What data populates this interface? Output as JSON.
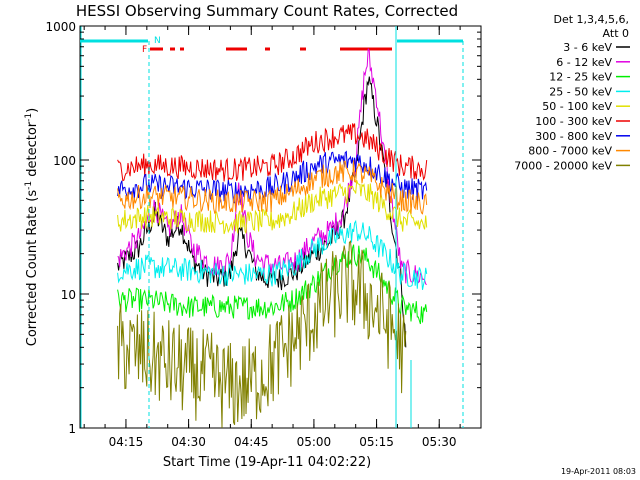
{
  "colors": {
    "s3_6": "#000000",
    "s6_12": "#e000e0",
    "s12_25": "#00ee00",
    "s25_50": "#00eeee",
    "s50_100": "#e0e000",
    "s100_300": "#ee0000",
    "s300_800": "#0000ee",
    "s800_7000": "#ff8800",
    "s7000_20000": "#808000",
    "att": "#00e0e0",
    "flags": "#ee0000"
  },
  "chart_data": {
    "type": "line",
    "title": "HESSI Observing Summary Count Rates, Corrected",
    "xlabel": "Start Time (19-Apr-11 04:02:22)",
    "ylabel": "Corrected Count Rate (s",
    "ylabel_sup": "-1",
    "ylabel_mid": " detector",
    "ylabel_sup2": "-1",
    "ylabel_end": ")",
    "yscale": "log",
    "ylim": [
      1,
      1000
    ],
    "xlim": [
      "04:04",
      "05:40"
    ],
    "xticks": [
      "04:15",
      "04:30",
      "04:45",
      "05:00",
      "05:15",
      "05:30"
    ],
    "yticks": [
      "1",
      "10",
      "100",
      "1000"
    ],
    "legend_header": [
      "Det 1,3,4,5,6,",
      "Att 0"
    ],
    "legend_position": "right",
    "timestamp": "19-Apr-2011 08:03",
    "flags_labels": [
      "F",
      "N"
    ],
    "series": [
      {
        "name": "3 - 6 keV",
        "color_key": "s3_6",
        "points": [
          [
            "04:13",
            16
          ],
          [
            "04:18",
            22
          ],
          [
            "04:22",
            40
          ],
          [
            "04:25",
            26
          ],
          [
            "04:28",
            34
          ],
          [
            "04:31",
            18
          ],
          [
            "04:34",
            14
          ],
          [
            "04:37",
            13
          ],
          [
            "04:40",
            14
          ],
          [
            "04:42",
            28
          ],
          [
            "04:44",
            22
          ],
          [
            "04:46",
            15
          ],
          [
            "04:48",
            13
          ],
          [
            "04:52",
            13
          ],
          [
            "04:56",
            15
          ],
          [
            "05:00",
            20
          ],
          [
            "05:04",
            25
          ],
          [
            "05:07",
            35
          ],
          [
            "05:10",
            80
          ],
          [
            "05:12",
            250
          ],
          [
            "05:13",
            400
          ],
          [
            "05:15",
            200
          ],
          [
            "05:17",
            80
          ],
          [
            "05:19",
            30
          ],
          [
            "05:21",
            12
          ],
          [
            "05:22",
            4
          ]
        ]
      },
      {
        "name": "6 - 12 keV",
        "color_key": "s6_12",
        "points": [
          [
            "04:13",
            18
          ],
          [
            "04:18",
            26
          ],
          [
            "04:22",
            45
          ],
          [
            "04:25",
            30
          ],
          [
            "04:28",
            40
          ],
          [
            "04:31",
            22
          ],
          [
            "04:34",
            18
          ],
          [
            "04:37",
            16
          ],
          [
            "04:40",
            18
          ],
          [
            "04:42",
            70
          ],
          [
            "04:44",
            28
          ],
          [
            "04:46",
            19
          ],
          [
            "04:48",
            17
          ],
          [
            "04:52",
            16
          ],
          [
            "04:56",
            18
          ],
          [
            "05:00",
            25
          ],
          [
            "05:04",
            30
          ],
          [
            "05:07",
            40
          ],
          [
            "05:10",
            100
          ],
          [
            "05:12",
            400
          ],
          [
            "05:13",
            600
          ],
          [
            "05:15",
            300
          ],
          [
            "05:17",
            100
          ],
          [
            "05:19",
            40
          ],
          [
            "05:21",
            15
          ],
          [
            "05:27",
            13
          ]
        ]
      },
      {
        "name": "12 - 25 keV",
        "color_key": "s12_25",
        "points": [
          [
            "04:13",
            9
          ],
          [
            "04:20",
            9
          ],
          [
            "04:30",
            8
          ],
          [
            "04:40",
            8
          ],
          [
            "04:50",
            8
          ],
          [
            "04:55",
            9
          ],
          [
            "05:00",
            12
          ],
          [
            "05:05",
            17
          ],
          [
            "05:10",
            20
          ],
          [
            "05:13",
            18
          ],
          [
            "05:17",
            12
          ],
          [
            "05:21",
            8
          ],
          [
            "05:27",
            7
          ]
        ]
      },
      {
        "name": "25 - 50 keV",
        "color_key": "s25_50",
        "points": [
          [
            "04:13",
            15
          ],
          [
            "04:20",
            16
          ],
          [
            "04:30",
            15
          ],
          [
            "04:40",
            14
          ],
          [
            "04:50",
            14
          ],
          [
            "04:55",
            16
          ],
          [
            "05:00",
            22
          ],
          [
            "05:05",
            26
          ],
          [
            "05:10",
            30
          ],
          [
            "05:13",
            27
          ],
          [
            "05:17",
            20
          ],
          [
            "05:21",
            14
          ],
          [
            "05:27",
            13
          ]
        ]
      },
      {
        "name": "50 - 100 keV",
        "color_key": "s50_100",
        "points": [
          [
            "04:13",
            35
          ],
          [
            "04:20",
            38
          ],
          [
            "04:30",
            36
          ],
          [
            "04:40",
            34
          ],
          [
            "04:50",
            35
          ],
          [
            "04:55",
            40
          ],
          [
            "05:00",
            50
          ],
          [
            "05:05",
            55
          ],
          [
            "05:10",
            60
          ],
          [
            "05:13",
            56
          ],
          [
            "05:17",
            45
          ],
          [
            "05:21",
            35
          ],
          [
            "05:27",
            33
          ]
        ]
      },
      {
        "name": "100 - 300 keV",
        "color_key": "s100_300",
        "points": [
          [
            "04:13",
            85
          ],
          [
            "04:20",
            92
          ],
          [
            "04:30",
            88
          ],
          [
            "04:40",
            84
          ],
          [
            "04:50",
            90
          ],
          [
            "04:55",
            105
          ],
          [
            "05:00",
            135
          ],
          [
            "05:05",
            150
          ],
          [
            "05:10",
            155
          ],
          [
            "05:13",
            140
          ],
          [
            "05:17",
            110
          ],
          [
            "05:21",
            90
          ],
          [
            "05:27",
            85
          ]
        ]
      },
      {
        "name": "300 - 800 keV",
        "color_key": "s300_800",
        "points": [
          [
            "04:13",
            60
          ],
          [
            "04:20",
            65
          ],
          [
            "04:30",
            62
          ],
          [
            "04:40",
            58
          ],
          [
            "04:50",
            62
          ],
          [
            "04:55",
            72
          ],
          [
            "05:00",
            90
          ],
          [
            "05:05",
            98
          ],
          [
            "05:10",
            100
          ],
          [
            "05:13",
            92
          ],
          [
            "05:17",
            75
          ],
          [
            "05:21",
            62
          ],
          [
            "05:27",
            58
          ]
        ]
      },
      {
        "name": "800 - 7000 keV",
        "color_key": "s800_7000",
        "points": [
          [
            "04:13",
            50
          ],
          [
            "04:20",
            54
          ],
          [
            "04:30",
            52
          ],
          [
            "04:40",
            48
          ],
          [
            "04:50",
            50
          ],
          [
            "04:55",
            58
          ],
          [
            "05:00",
            72
          ],
          [
            "05:05",
            80
          ],
          [
            "05:10",
            82
          ],
          [
            "05:13",
            75
          ],
          [
            "05:17",
            60
          ],
          [
            "05:21",
            50
          ],
          [
            "05:27",
            46
          ]
        ]
      },
      {
        "name": "7000 - 20000 keV",
        "color_key": "s7000_20000",
        "points": [
          [
            "04:13",
            4
          ],
          [
            "04:20",
            3.5
          ],
          [
            "04:25",
            3
          ],
          [
            "04:30",
            2.6
          ],
          [
            "04:35",
            2.4
          ],
          [
            "04:40",
            2
          ],
          [
            "04:45",
            2.2
          ],
          [
            "04:50",
            3
          ],
          [
            "04:55",
            4.5
          ],
          [
            "05:00",
            7
          ],
          [
            "05:05",
            10
          ],
          [
            "05:08",
            12
          ],
          [
            "05:12",
            10
          ],
          [
            "05:16",
            7
          ],
          [
            "05:20",
            5
          ],
          [
            "05:22",
            3
          ]
        ]
      }
    ]
  }
}
